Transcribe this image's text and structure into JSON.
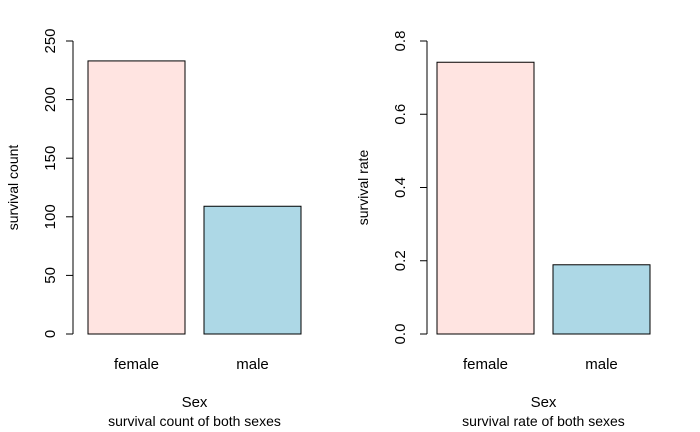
{
  "chart_data": [
    {
      "type": "bar",
      "categories": [
        "female",
        "male"
      ],
      "values": [
        233,
        109
      ],
      "colors": [
        "#ffe4e1",
        "#add8e6"
      ],
      "xlabel": "Sex",
      "ylabel": "survival count",
      "caption": "survival count of both sexes",
      "ylim": [
        0,
        250
      ],
      "yticks": [
        0,
        50,
        100,
        150,
        200,
        250
      ],
      "ytick_labels": [
        "0",
        "50",
        "100",
        "150",
        "200",
        "250"
      ],
      "grid": false
    },
    {
      "type": "bar",
      "categories": [
        "female",
        "male"
      ],
      "values": [
        0.742,
        0.189
      ],
      "colors": [
        "#ffe4e1",
        "#add8e6"
      ],
      "xlabel": "Sex",
      "ylabel": "survival rate",
      "caption": "survival rate of both sexes",
      "ylim": [
        0,
        0.8
      ],
      "yticks": [
        0,
        0.2,
        0.4,
        0.6,
        0.8
      ],
      "ytick_labels": [
        "0.0",
        "0.2",
        "0.4",
        "0.6",
        "0.8"
      ],
      "grid": false
    }
  ]
}
